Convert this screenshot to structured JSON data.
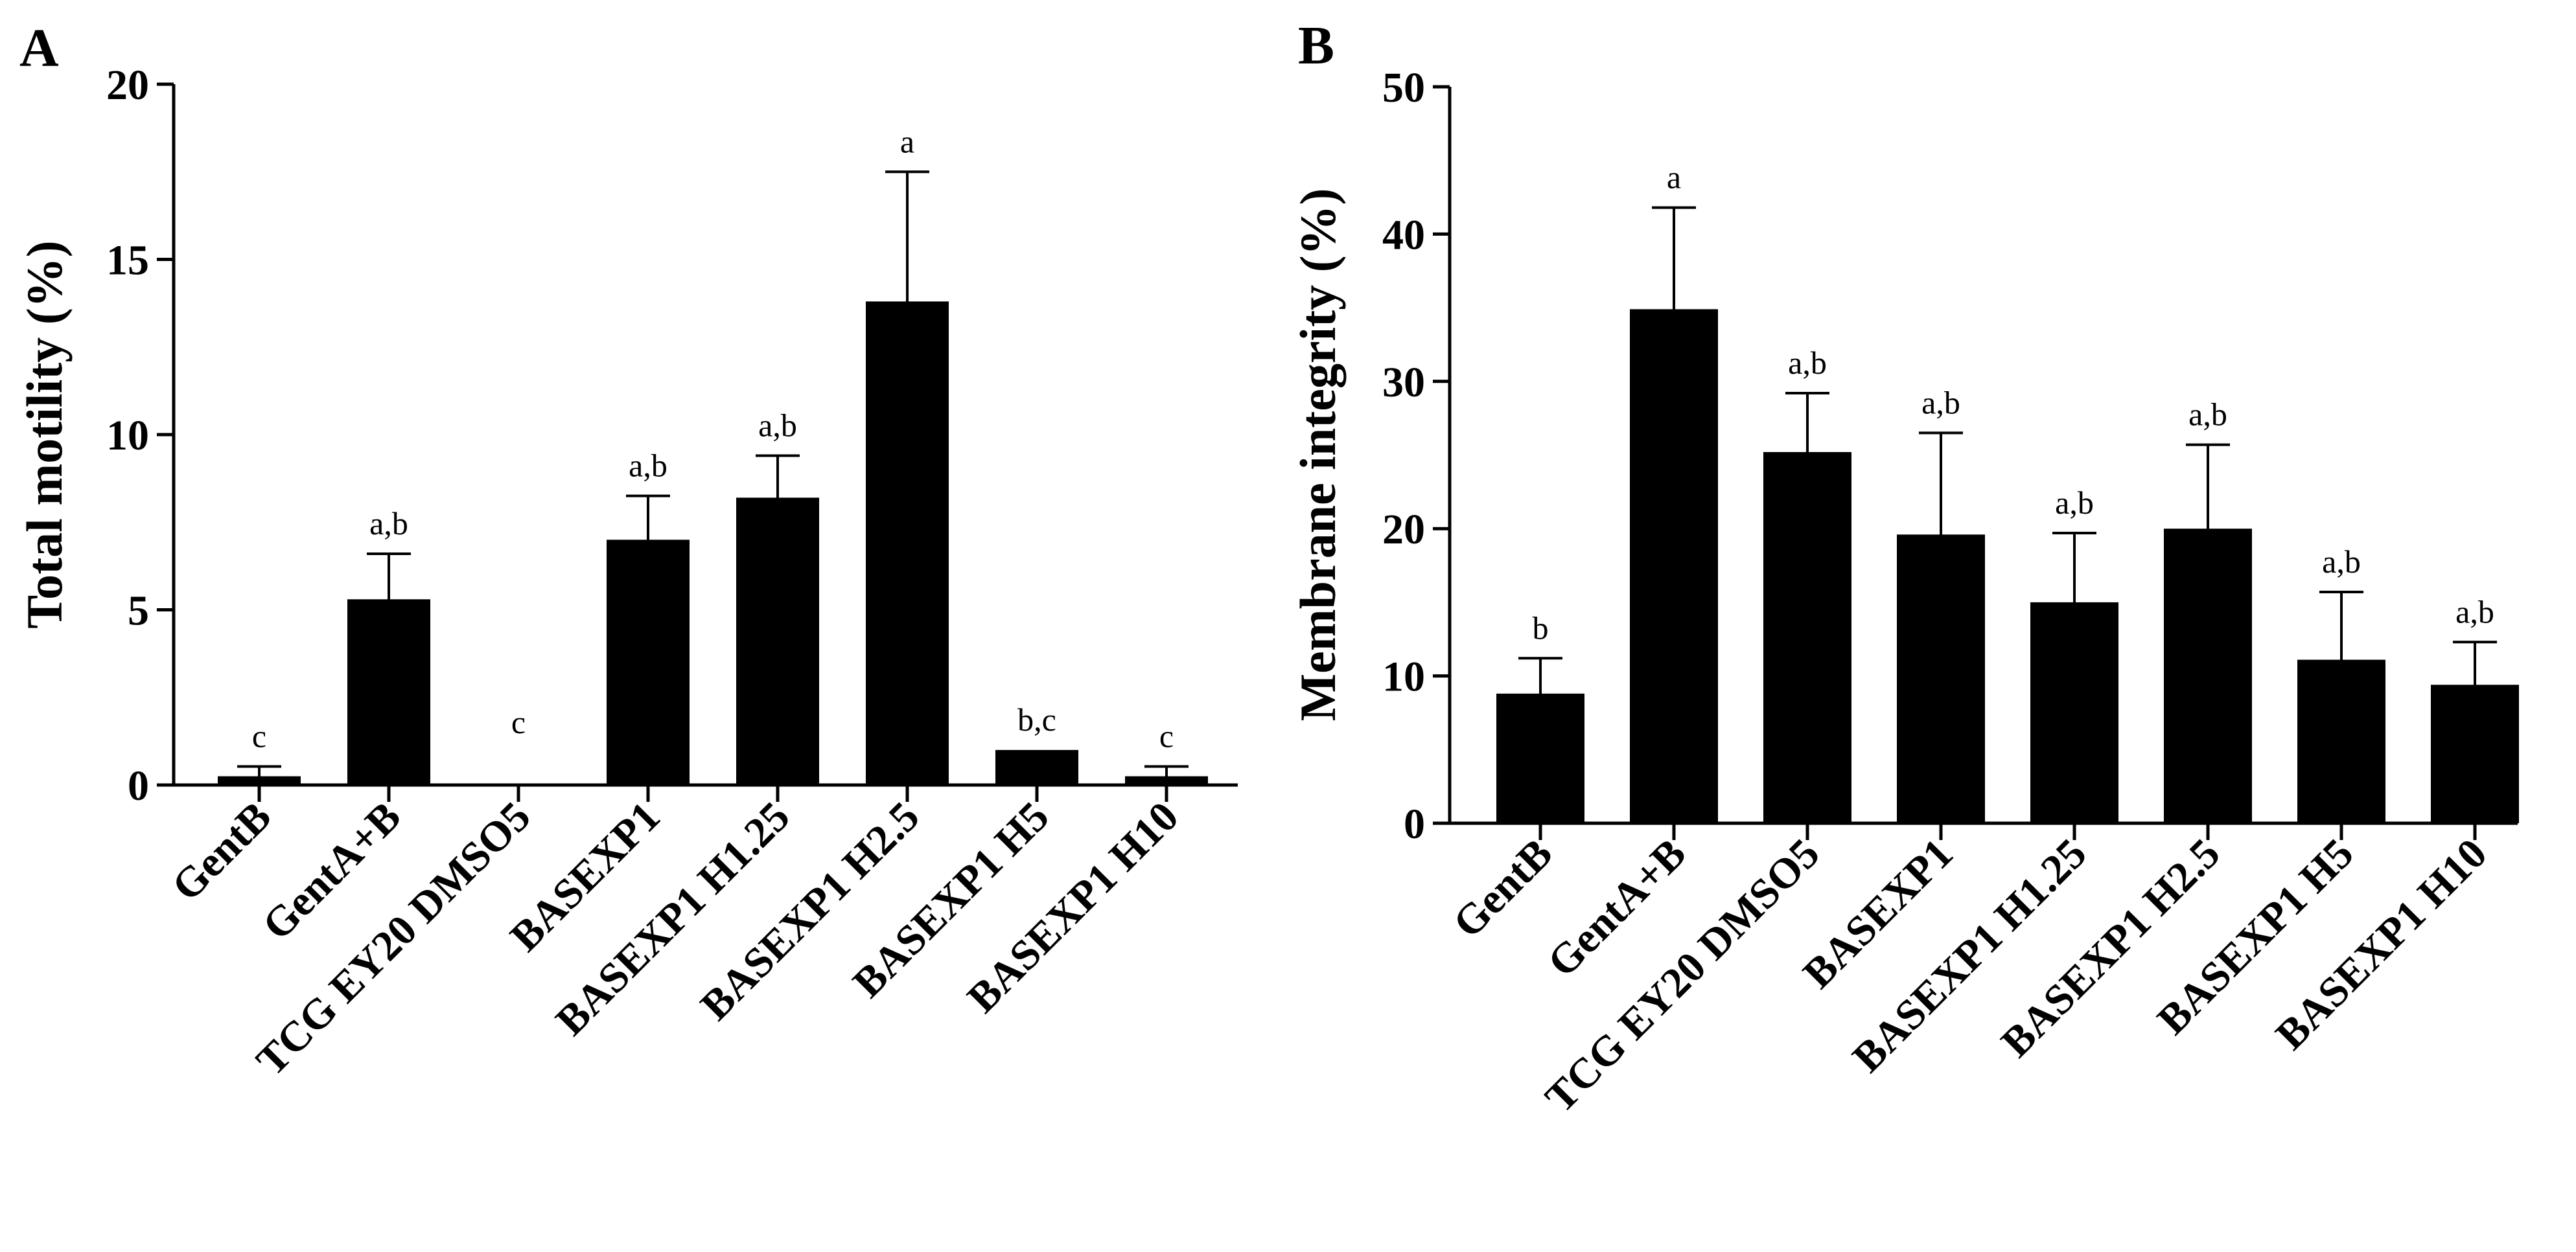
{
  "chart_data": [
    {
      "panel_label": "A",
      "type": "bar",
      "title": "",
      "xlabel": "",
      "ylabel": "Total motility (%)",
      "ylim": [
        0,
        20
      ],
      "yticks": [
        "0",
        "5",
        "10",
        "15",
        "20"
      ],
      "categories": [
        "GentB",
        "GentA+B",
        "TCG EY20 DMSO5",
        "BASEXP1",
        "BASEXP1 H1.25",
        "BASEXP1 H2.5",
        "BASEXP1 H5",
        "BASEXP1 H10"
      ],
      "values": [
        0.25,
        5.3,
        0,
        7.0,
        8.2,
        13.8,
        1.0,
        0.25
      ],
      "errors": [
        0.28,
        1.3,
        0,
        1.25,
        1.2,
        3.7,
        0,
        0.28
      ],
      "significance": [
        "c",
        "a,b",
        "c",
        "a,b",
        "a,b",
        "a",
        "b,c",
        "c"
      ],
      "color": "#000000"
    },
    {
      "panel_label": "B",
      "type": "bar",
      "title": "",
      "xlabel": "",
      "ylabel": "Membrane integrity (%)",
      "ylim": [
        0,
        50
      ],
      "yticks": [
        "0",
        "10",
        "20",
        "30",
        "40",
        "50"
      ],
      "categories": [
        "GentB",
        "GentA+B",
        "TCG EY20 DMSO5",
        "BASEXP1",
        "BASEXP1 H1.25",
        "BASEXP1 H2.5",
        "BASEXP1 H5",
        "BASEXP1 H10"
      ],
      "values": [
        8.8,
        34.9,
        25.2,
        19.6,
        15.0,
        20.0,
        11.1,
        9.4
      ],
      "errors": [
        2.4,
        6.9,
        4.0,
        6.9,
        4.7,
        5.7,
        4.6,
        2.9
      ],
      "significance": [
        "b",
        "a",
        "a,b",
        "a,b",
        "a,b",
        "a,b",
        "a,b",
        "a,b"
      ],
      "color": "#000000"
    }
  ]
}
